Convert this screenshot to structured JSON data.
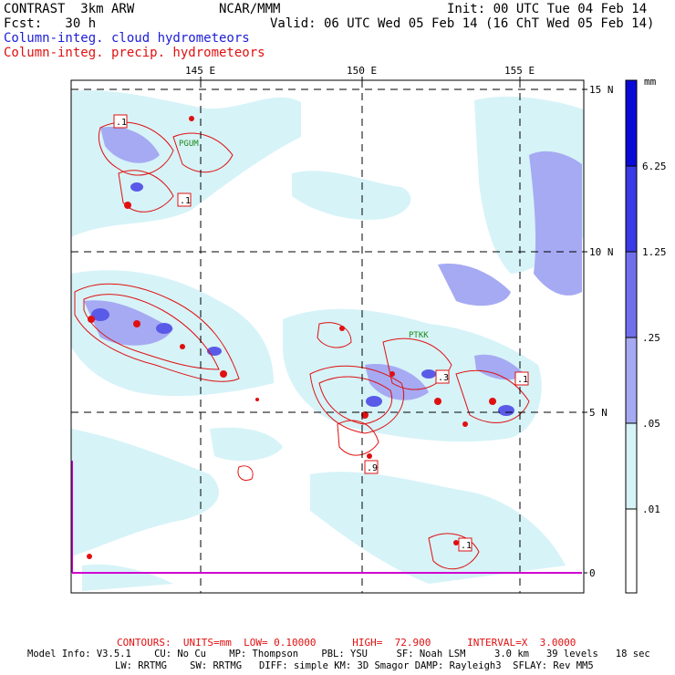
{
  "header": {
    "model": "CONTRAST  3km ARW",
    "org": "NCAR/MMM",
    "init": "Init: 00 UTC Tue 04 Feb 14",
    "fcst": "Fcst:   30 h",
    "valid": "Valid: 06 UTC Wed 05 Feb 14 (16 ChT Wed 05 Feb 14)",
    "field1": "Column-integ. cloud hydrometeors",
    "field2": "Column-integ. precip. hydrometeors"
  },
  "map": {
    "lon_labels": [
      "145 E",
      "150 E",
      "155 E"
    ],
    "lat_labels": [
      "15 N",
      "10 N",
      "5 N",
      "0"
    ],
    "stations": [
      "PGUM",
      "PTKK"
    ],
    "max_labels": [
      ".1",
      ".1",
      ".3",
      ".1",
      ".9",
      ".1"
    ]
  },
  "legend": {
    "unit": "mm",
    "levels": [
      "6.25",
      "1.25",
      ".25",
      ".05",
      ".01"
    ],
    "colors": [
      "#0a0ad8",
      "#3a3ae6",
      "#7070ec",
      "#a6aaf2",
      "#d6f3f8",
      "#ffffff"
    ]
  },
  "footer": {
    "contours": "CONTOURS:  UNITS=mm  LOW= 0.10000      HIGH=  72.900      INTERVAL=X  3.0000",
    "info1": "Model Info: V3.5.1    CU: No Cu    MP: Thompson    PBL: YSU     SF: Noah LSM     3.0 km   39 levels   18 sec",
    "info2": "LW: RRTMG    SW: RRTMG   DIFF: simple KM: 3D Smagor DAMP: Rayleigh3  SFLAY: Rev MM5"
  }
}
